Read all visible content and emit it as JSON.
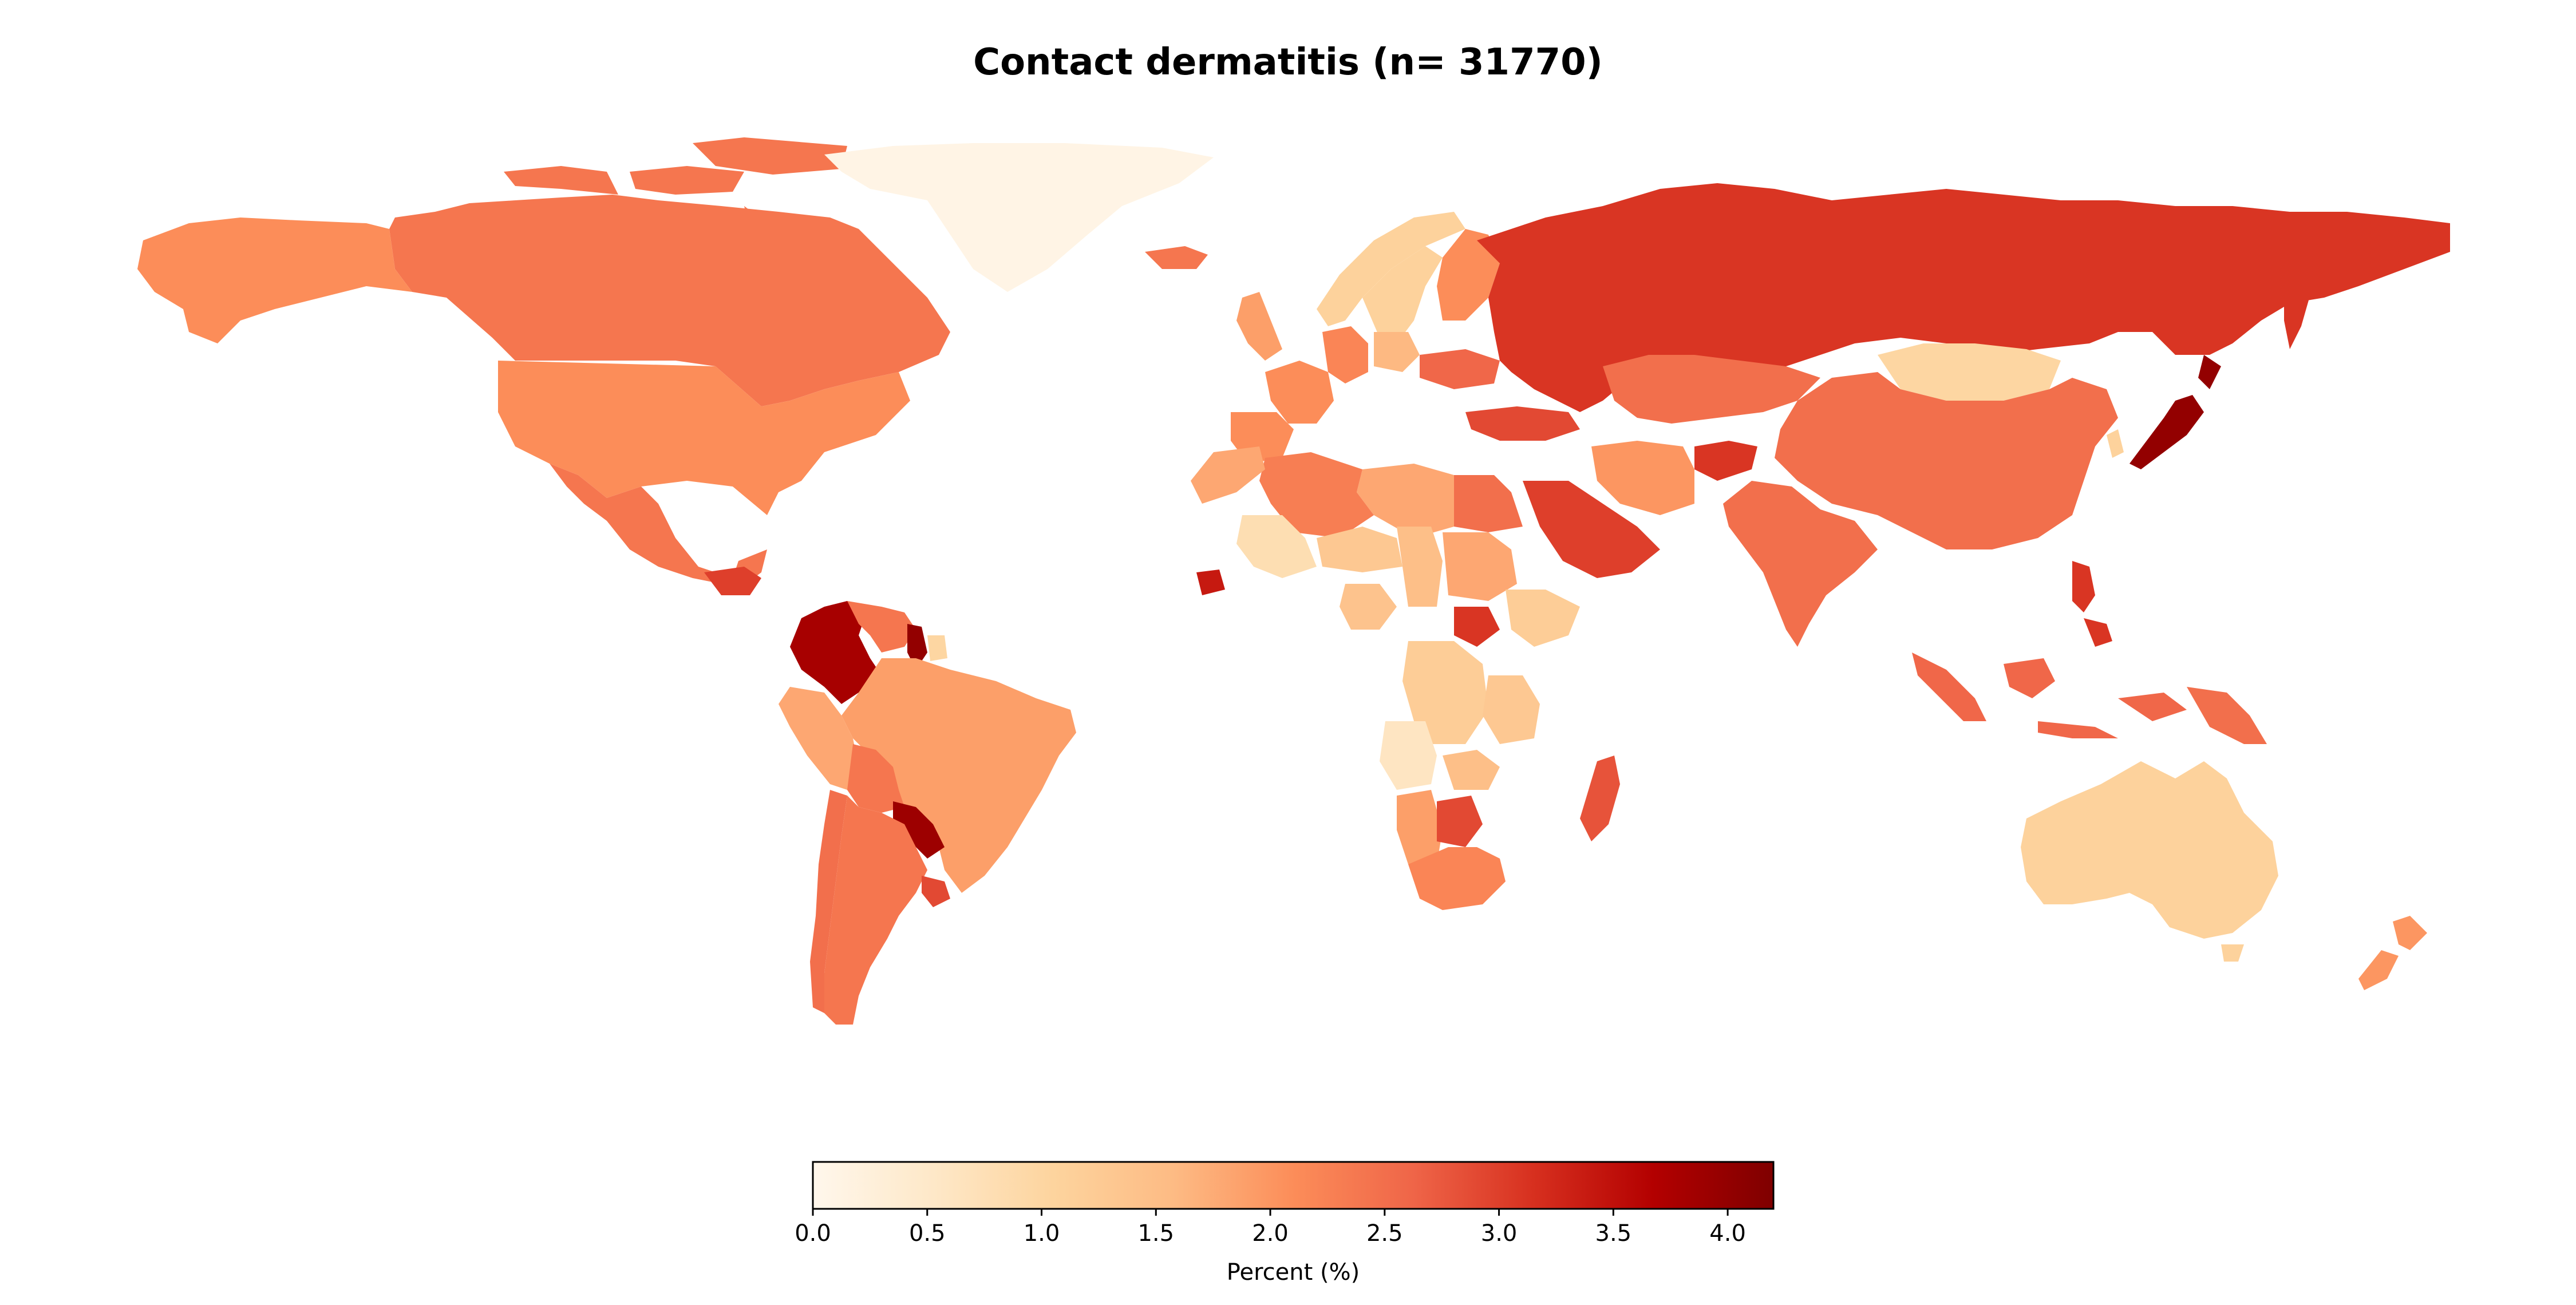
{
  "title": "Contact dermatitis (n= 31770)",
  "colorbar": {
    "label": "Percent (%)",
    "min": 0.0,
    "max": 4.2,
    "ticks": [
      "0.0",
      "0.5",
      "1.0",
      "1.5",
      "2.0",
      "2.5",
      "3.0",
      "3.5",
      "4.0"
    ],
    "colormap": "OrRd",
    "stops": [
      "#fff7ec",
      "#fee8c8",
      "#fdd49e",
      "#fdbb84",
      "#fc8d59",
      "#ef6548",
      "#d7301f",
      "#b30000",
      "#7f0000"
    ]
  },
  "chart_data": {
    "type": "heatmap",
    "title": "Contact dermatitis (n= 31770)",
    "value_label": "Percent (%)",
    "range": [
      0.0,
      4.2
    ],
    "regions": [
      {
        "name": "Canada",
        "value": 2.4
      },
      {
        "name": "United States",
        "value": 2.1
      },
      {
        "name": "Alaska",
        "value": 2.1
      },
      {
        "name": "Greenland",
        "value": 0.1
      },
      {
        "name": "Mexico",
        "value": 2.4
      },
      {
        "name": "Guatemala",
        "value": 3.0
      },
      {
        "name": "Colombia",
        "value": 3.8
      },
      {
        "name": "Venezuela",
        "value": 2.4
      },
      {
        "name": "Guyana",
        "value": 4.0
      },
      {
        "name": "Suriname",
        "value": 1.0
      },
      {
        "name": "Brazil",
        "value": 1.9
      },
      {
        "name": "Peru",
        "value": 1.8
      },
      {
        "name": "Bolivia",
        "value": 2.4
      },
      {
        "name": "Paraguay",
        "value": 3.9
      },
      {
        "name": "Chile",
        "value": 2.5
      },
      {
        "name": "Argentina",
        "value": 2.4
      },
      {
        "name": "Uruguay",
        "value": 2.9
      },
      {
        "name": "Iceland",
        "value": 2.4
      },
      {
        "name": "Norway",
        "value": 1.1
      },
      {
        "name": "Sweden",
        "value": 1.1
      },
      {
        "name": "Finland",
        "value": 2.1
      },
      {
        "name": "United Kingdom",
        "value": 1.9
      },
      {
        "name": "France",
        "value": 2.1
      },
      {
        "name": "Spain",
        "value": 2.1
      },
      {
        "name": "Germany",
        "value": 2.2
      },
      {
        "name": "Poland",
        "value": 1.6
      },
      {
        "name": "Ukraine",
        "value": 2.6
      },
      {
        "name": "Turkey",
        "value": 2.9
      },
      {
        "name": "Russia",
        "value": 3.1
      },
      {
        "name": "Kazakhstan",
        "value": 2.5
      },
      {
        "name": "Mongolia",
        "value": 1.0
      },
      {
        "name": "China",
        "value": 2.5
      },
      {
        "name": "Japan",
        "value": 4.0
      },
      {
        "name": "South Korea",
        "value": 1.1
      },
      {
        "name": "India",
        "value": 2.5
      },
      {
        "name": "Afghanistan",
        "value": 3.1
      },
      {
        "name": "Iran",
        "value": 2.0
      },
      {
        "name": "Saudi Arabia",
        "value": 3.0
      },
      {
        "name": "Egypt",
        "value": 2.5
      },
      {
        "name": "Libya",
        "value": 1.8
      },
      {
        "name": "Algeria",
        "value": 2.3
      },
      {
        "name": "Morocco",
        "value": 1.8
      },
      {
        "name": "Mali",
        "value": 0.8
      },
      {
        "name": "Niger",
        "value": 1.3
      },
      {
        "name": "Chad",
        "value": 1.5
      },
      {
        "name": "Sudan",
        "value": 1.8
      },
      {
        "name": "Ethiopia",
        "value": 1.2
      },
      {
        "name": "South Sudan",
        "value": 3.1
      },
      {
        "name": "Senegal",
        "value": 3.4
      },
      {
        "name": "Nigeria",
        "value": 1.4
      },
      {
        "name": "DR Congo",
        "value": 1.2
      },
      {
        "name": "Angola",
        "value": 0.6
      },
      {
        "name": "Tanzania",
        "value": 1.3
      },
      {
        "name": "Zambia",
        "value": 1.5
      },
      {
        "name": "Namibia",
        "value": 1.9
      },
      {
        "name": "Botswana",
        "value": 2.9
      },
      {
        "name": "South Africa",
        "value": 2.2
      },
      {
        "name": "Madagascar",
        "value": 2.8
      },
      {
        "name": "Indonesia",
        "value": 2.6
      },
      {
        "name": "Philippines",
        "value": 3.1
      },
      {
        "name": "Papua New Guinea",
        "value": 2.5
      },
      {
        "name": "Australia",
        "value": 1.1
      },
      {
        "name": "New Zealand",
        "value": 2.0
      }
    ]
  }
}
